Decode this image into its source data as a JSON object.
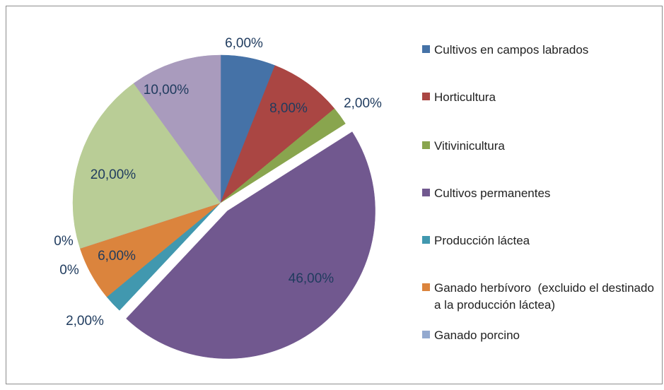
{
  "chart_data": {
    "type": "pie",
    "categories": [
      "Cultivos en campos labrados",
      "Horticultura",
      "Vitivinicultura",
      "Cultivos permanentes",
      "Producción láctea",
      "Ganado herbívoro  (excluido el destinado a la producción láctea)",
      "Ganado porcino",
      null,
      null,
      null
    ],
    "values": [
      6,
      8,
      2,
      46,
      2,
      6,
      0,
      0,
      20,
      10
    ],
    "value_labels": [
      "6,00%",
      "8,00%",
      "2,00%",
      "46,00%",
      "2,00%",
      "6,00%",
      "0%",
      "0%",
      "20,00%",
      "10,00%"
    ],
    "colors": [
      "#4572a7",
      "#aa4643",
      "#89a54e",
      "#71588f",
      "#4198af",
      "#db843d",
      "#93a9cf",
      "#d19392",
      "#b9cd96",
      "#a99bbd"
    ],
    "exploded": [
      3
    ],
    "legend": "right"
  }
}
